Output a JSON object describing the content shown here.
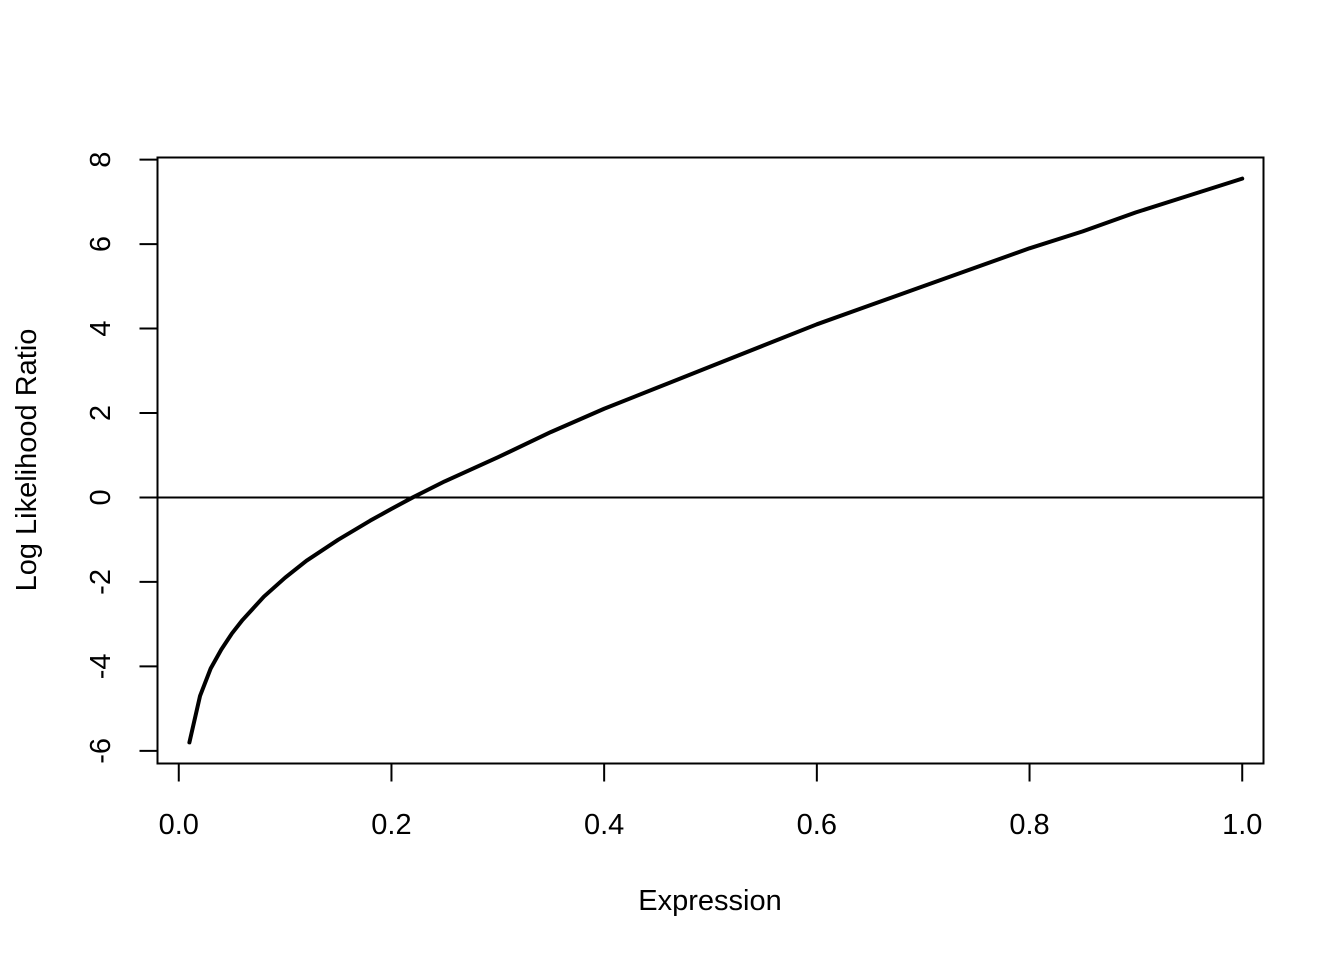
{
  "chart_data": {
    "type": "line",
    "title": "",
    "xlabel": "Expression",
    "ylabel": "Log Likelihood Ratio",
    "xlim": [
      -0.02,
      1.02
    ],
    "ylim": [
      -6.3,
      8.05
    ],
    "x_ticks": [
      0.0,
      0.2,
      0.4,
      0.6,
      0.8,
      1.0
    ],
    "x_tick_labels": [
      "0.0",
      "0.2",
      "0.4",
      "0.6",
      "0.8",
      "1.0"
    ],
    "y_ticks": [
      -6,
      -4,
      -2,
      0,
      2,
      4,
      6,
      8
    ],
    "y_tick_labels": [
      "-6",
      "-4",
      "-2",
      "0",
      "2",
      "4",
      "6",
      "8"
    ],
    "reference_lines": [
      {
        "axis": "y",
        "value": 0
      }
    ],
    "grid": false,
    "legend": "none",
    "series": [
      {
        "color": "#000000",
        "x": [
          0.01,
          0.02,
          0.03,
          0.04,
          0.05,
          0.06,
          0.08,
          0.1,
          0.12,
          0.15,
          0.18,
          0.2,
          0.22,
          0.25,
          0.3,
          0.35,
          0.4,
          0.45,
          0.5,
          0.55,
          0.6,
          0.65,
          0.7,
          0.75,
          0.8,
          0.85,
          0.9,
          0.95,
          1.0
        ],
        "y": [
          -5.8,
          -4.7,
          -4.05,
          -3.6,
          -3.22,
          -2.9,
          -2.35,
          -1.9,
          -1.5,
          -1.0,
          -0.55,
          -0.27,
          0.0,
          0.38,
          0.95,
          1.55,
          2.1,
          2.6,
          3.1,
          3.6,
          4.1,
          4.55,
          5.0,
          5.45,
          5.9,
          6.3,
          6.75,
          7.15,
          7.55
        ]
      }
    ]
  }
}
